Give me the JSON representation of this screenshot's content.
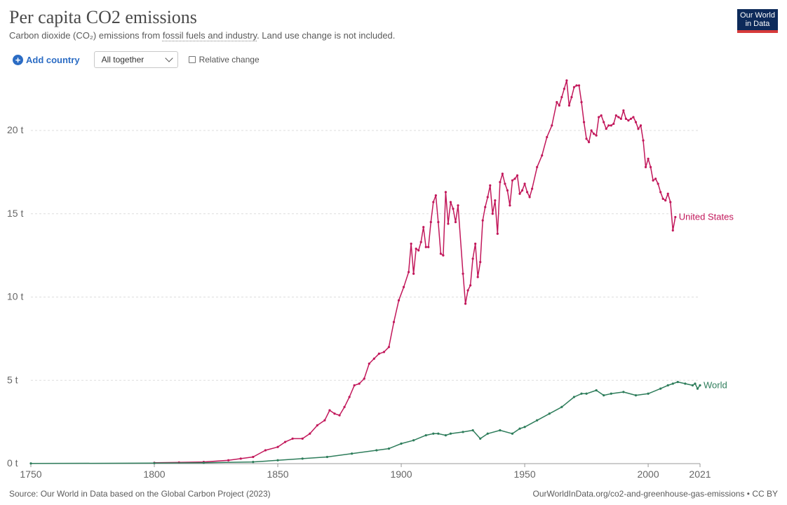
{
  "header": {
    "title": "Per capita CO2 emissions",
    "subtitle_pre": "Carbon dioxide (CO₂) emissions from ",
    "subtitle_link": "fossil fuels and industry",
    "subtitle_post": ". Land use change is not included.",
    "logo_line1": "Our World",
    "logo_line2": "in Data"
  },
  "controls": {
    "add_country_label": "Add country",
    "select_value": "All together",
    "relative_change_label": "Relative change",
    "plus_icon": "plus-circle-icon",
    "chevron_icon": "chevron-down-icon"
  },
  "footer": {
    "source": "Source: Our World in Data based on the Global Carbon Project (2023)",
    "url": "OurWorldInData.org/co2-and-greenhouse-gas-emissions • CC BY"
  },
  "chart_data": {
    "type": "line",
    "title": "Per capita CO2 emissions",
    "xlim": [
      1750,
      2021
    ],
    "ylim": [
      0,
      22
    ],
    "x_ticks": [
      1750,
      1800,
      1850,
      1900,
      1950,
      2000,
      2021
    ],
    "x_tick_labels": [
      "1750",
      "1800",
      "1850",
      "1900",
      "1950",
      "2000",
      "2021"
    ],
    "y_ticks": [
      0,
      5,
      10,
      15,
      20
    ],
    "y_tick_labels": [
      "0 t",
      "5 t",
      "10 t",
      "15 t",
      "20 t"
    ],
    "grid": "horizontal-dashed",
    "legend": "inline-right",
    "series": [
      {
        "name": "United States",
        "color": "#c2185b",
        "points": [
          [
            1800,
            0.05
          ],
          [
            1810,
            0.07
          ],
          [
            1820,
            0.1
          ],
          [
            1830,
            0.2
          ],
          [
            1835,
            0.3
          ],
          [
            1840,
            0.4
          ],
          [
            1845,
            0.8
          ],
          [
            1850,
            1.0
          ],
          [
            1853,
            1.3
          ],
          [
            1856,
            1.5
          ],
          [
            1860,
            1.5
          ],
          [
            1863,
            1.8
          ],
          [
            1866,
            2.3
          ],
          [
            1869,
            2.6
          ],
          [
            1871,
            3.2
          ],
          [
            1873,
            3.0
          ],
          [
            1875,
            2.9
          ],
          [
            1877,
            3.4
          ],
          [
            1879,
            4.0
          ],
          [
            1881,
            4.7
          ],
          [
            1883,
            4.8
          ],
          [
            1885,
            5.1
          ],
          [
            1887,
            6.0
          ],
          [
            1889,
            6.3
          ],
          [
            1891,
            6.6
          ],
          [
            1893,
            6.7
          ],
          [
            1895,
            7.0
          ],
          [
            1897,
            8.5
          ],
          [
            1899,
            9.8
          ],
          [
            1901,
            10.6
          ],
          [
            1903,
            11.5
          ],
          [
            1904,
            13.2
          ],
          [
            1905,
            11.4
          ],
          [
            1906,
            12.9
          ],
          [
            1907,
            12.8
          ],
          [
            1908,
            13.3
          ],
          [
            1909,
            14.2
          ],
          [
            1910,
            13.0
          ],
          [
            1911,
            13.0
          ],
          [
            1912,
            14.5
          ],
          [
            1913,
            15.7
          ],
          [
            1914,
            16.1
          ],
          [
            1915,
            14.5
          ],
          [
            1916,
            12.6
          ],
          [
            1917,
            12.5
          ],
          [
            1918,
            16.3
          ],
          [
            1919,
            14.4
          ],
          [
            1920,
            15.7
          ],
          [
            1921,
            15.3
          ],
          [
            1922,
            14.5
          ],
          [
            1923,
            15.5
          ],
          [
            1925,
            11.4
          ],
          [
            1926,
            9.6
          ],
          [
            1927,
            10.4
          ],
          [
            1928,
            10.7
          ],
          [
            1929,
            12.3
          ],
          [
            1930,
            13.2
          ],
          [
            1931,
            11.2
          ],
          [
            1932,
            12.1
          ],
          [
            1933,
            14.6
          ],
          [
            1934,
            15.4
          ],
          [
            1935,
            16.0
          ],
          [
            1936,
            16.7
          ],
          [
            1937,
            15.0
          ],
          [
            1938,
            15.8
          ],
          [
            1939,
            13.8
          ],
          [
            1940,
            16.9
          ],
          [
            1941,
            17.4
          ],
          [
            1942,
            16.8
          ],
          [
            1943,
            16.4
          ],
          [
            1944,
            15.5
          ],
          [
            1945,
            17.0
          ],
          [
            1946,
            17.1
          ],
          [
            1947,
            17.3
          ],
          [
            1948,
            16.2
          ],
          [
            1949,
            16.4
          ],
          [
            1950,
            16.8
          ],
          [
            1951,
            16.3
          ],
          [
            1952,
            16.0
          ],
          [
            1953,
            16.5
          ],
          [
            1955,
            17.8
          ],
          [
            1957,
            18.5
          ],
          [
            1959,
            19.6
          ],
          [
            1961,
            20.3
          ],
          [
            1963,
            21.7
          ],
          [
            1964,
            21.5
          ],
          [
            1965,
            22.0
          ],
          [
            1966,
            22.5
          ],
          [
            1967,
            23.0
          ],
          [
            1968,
            21.5
          ],
          [
            1969,
            22.0
          ],
          [
            1970,
            22.6
          ],
          [
            1971,
            22.7
          ],
          [
            1972,
            22.7
          ],
          [
            1973,
            21.7
          ],
          [
            1974,
            20.5
          ],
          [
            1975,
            19.5
          ],
          [
            1976,
            19.3
          ],
          [
            1977,
            20.0
          ],
          [
            1978,
            19.8
          ],
          [
            1979,
            19.7
          ],
          [
            1980,
            20.8
          ],
          [
            1981,
            20.9
          ],
          [
            1982,
            20.5
          ],
          [
            1983,
            20.1
          ],
          [
            1984,
            20.3
          ],
          [
            1985,
            20.3
          ],
          [
            1986,
            20.4
          ],
          [
            1987,
            20.9
          ],
          [
            1988,
            20.8
          ],
          [
            1989,
            20.7
          ],
          [
            1990,
            21.2
          ],
          [
            1991,
            20.7
          ],
          [
            1992,
            20.6
          ],
          [
            1993,
            20.7
          ],
          [
            1994,
            20.8
          ],
          [
            1995,
            20.5
          ],
          [
            1996,
            20.1
          ],
          [
            1997,
            20.3
          ],
          [
            1998,
            19.4
          ],
          [
            1999,
            17.8
          ],
          [
            2000,
            18.3
          ],
          [
            2001,
            17.8
          ],
          [
            2002,
            17.0
          ],
          [
            2003,
            17.1
          ],
          [
            2004,
            16.8
          ],
          [
            2005,
            16.3
          ],
          [
            2006,
            15.9
          ],
          [
            2007,
            15.8
          ],
          [
            2008,
            16.2
          ],
          [
            2009,
            15.7
          ],
          [
            2010,
            14.0
          ],
          [
            2011,
            14.8
          ]
        ]
      },
      {
        "name": "World",
        "color": "#2e7d5b",
        "points": [
          [
            1750,
            0.01
          ],
          [
            1800,
            0.03
          ],
          [
            1820,
            0.05
          ],
          [
            1840,
            0.1
          ],
          [
            1850,
            0.2
          ],
          [
            1860,
            0.3
          ],
          [
            1870,
            0.4
          ],
          [
            1880,
            0.6
          ],
          [
            1890,
            0.8
          ],
          [
            1895,
            0.9
          ],
          [
            1900,
            1.2
          ],
          [
            1905,
            1.4
          ],
          [
            1910,
            1.7
          ],
          [
            1913,
            1.8
          ],
          [
            1915,
            1.8
          ],
          [
            1918,
            1.7
          ],
          [
            1920,
            1.8
          ],
          [
            1925,
            1.9
          ],
          [
            1929,
            2.0
          ],
          [
            1932,
            1.5
          ],
          [
            1935,
            1.8
          ],
          [
            1940,
            2.0
          ],
          [
            1945,
            1.8
          ],
          [
            1948,
            2.1
          ],
          [
            1950,
            2.2
          ],
          [
            1955,
            2.6
          ],
          [
            1960,
            3.0
          ],
          [
            1965,
            3.4
          ],
          [
            1970,
            4.0
          ],
          [
            1973,
            4.2
          ],
          [
            1975,
            4.2
          ],
          [
            1979,
            4.4
          ],
          [
            1982,
            4.1
          ],
          [
            1985,
            4.2
          ],
          [
            1990,
            4.3
          ],
          [
            1995,
            4.1
          ],
          [
            2000,
            4.2
          ],
          [
            2005,
            4.5
          ],
          [
            2008,
            4.7
          ],
          [
            2010,
            4.8
          ],
          [
            2012,
            4.9
          ],
          [
            2015,
            4.8
          ],
          [
            2018,
            4.7
          ],
          [
            2019,
            4.8
          ],
          [
            2020,
            4.5
          ],
          [
            2021,
            4.7
          ]
        ]
      }
    ]
  }
}
